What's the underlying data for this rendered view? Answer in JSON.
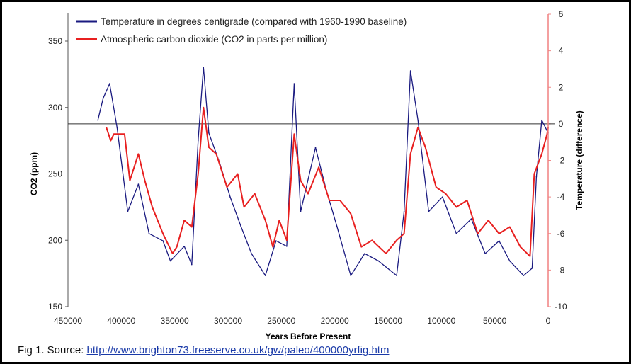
{
  "chart_data": {
    "type": "line",
    "xlabel": "Years Before Present",
    "ylabel": "CO2 (ppm)",
    "y2label": "Temperature (difference)",
    "xlim": [
      450000,
      0
    ],
    "ylim": [
      150,
      350
    ],
    "y2lim": [
      -10,
      6
    ],
    "xticks": [
      "450000",
      "400000",
      "350000",
      "300000",
      "250000",
      "200000",
      "150000",
      "100000",
      "50000",
      "0"
    ],
    "yticks": [
      "150",
      "200",
      "250",
      "300",
      "350"
    ],
    "y2ticks": [
      "-10",
      "-8",
      "-6",
      "-4",
      "-2",
      "0",
      "2",
      "4",
      "6"
    ],
    "reference_line": {
      "axis": "y2",
      "value": 0
    },
    "legend_position": "top",
    "series": [
      {
        "name": "Temperature in degrees centigrade (compared with 1960-1990 baseline)",
        "axis": "y2",
        "color": "#1a1a80",
        "x": [
          422000,
          417000,
          411000,
          404000,
          394000,
          384000,
          374000,
          361000,
          354000,
          341000,
          334000,
          328000,
          323000,
          318000,
          308000,
          298000,
          288000,
          278000,
          265000,
          255000,
          245000,
          238000,
          232000,
          218000,
          208000,
          198000,
          185000,
          172000,
          159000,
          142000,
          135000,
          129000,
          122000,
          112000,
          99000,
          86000,
          72000,
          59000,
          46000,
          36000,
          23000,
          15000,
          11000,
          6000,
          0
        ],
        "y": [
          0.2,
          1.4,
          2.2,
          -0.2,
          -4.8,
          -3.3,
          -6,
          -6.4,
          -7.5,
          -6.7,
          -7.7,
          -0.9,
          3.1,
          -0.5,
          -2.1,
          -4,
          -5.6,
          -7.1,
          -8.3,
          -6.4,
          -6.7,
          2.2,
          -4.8,
          -1.3,
          -3.6,
          -5.6,
          -8.3,
          -7.1,
          -7.5,
          -8.3,
          -4.8,
          2.9,
          0.2,
          -4.8,
          -4,
          -6,
          -5.2,
          -7.1,
          -6.4,
          -7.5,
          -8.3,
          -7.9,
          -2.9,
          0.2,
          -0.5
        ]
      },
      {
        "name": "Atmospheric carbon dioxide (CO2 in parts per million)",
        "axis": "y",
        "color": "#e82020",
        "x": [
          414000,
          410000,
          407000,
          397000,
          392000,
          384000,
          378000,
          371000,
          361000,
          352000,
          348000,
          341000,
          334000,
          328000,
          323000,
          318000,
          311000,
          301000,
          291000,
          285000,
          275000,
          265000,
          258000,
          252000,
          245000,
          238000,
          232000,
          225000,
          215000,
          205000,
          195000,
          185000,
          175000,
          165000,
          152000,
          142000,
          135000,
          129000,
          122000,
          115000,
          105000,
          96000,
          86000,
          76000,
          66000,
          56000,
          46000,
          36000,
          26000,
          17000,
          13000,
          6000,
          1000,
          0
        ],
        "y": [
          285,
          275,
          280,
          280,
          245,
          265,
          245,
          225,
          205,
          190,
          195,
          215,
          210,
          250,
          300,
          270,
          265,
          240,
          250,
          225,
          235,
          215,
          195,
          215,
          200,
          280,
          245,
          235,
          255,
          230,
          230,
          220,
          195,
          200,
          190,
          200,
          205,
          265,
          285,
          270,
          240,
          235,
          225,
          230,
          205,
          215,
          205,
          210,
          195,
          188,
          250,
          265,
          280,
          285
        ]
      }
    ]
  },
  "caption": {
    "prefix": "Fig 1. Source: ",
    "link": "http://www.brighton73.freeserve.co.uk/gw/paleo/400000yrfig.htm"
  }
}
